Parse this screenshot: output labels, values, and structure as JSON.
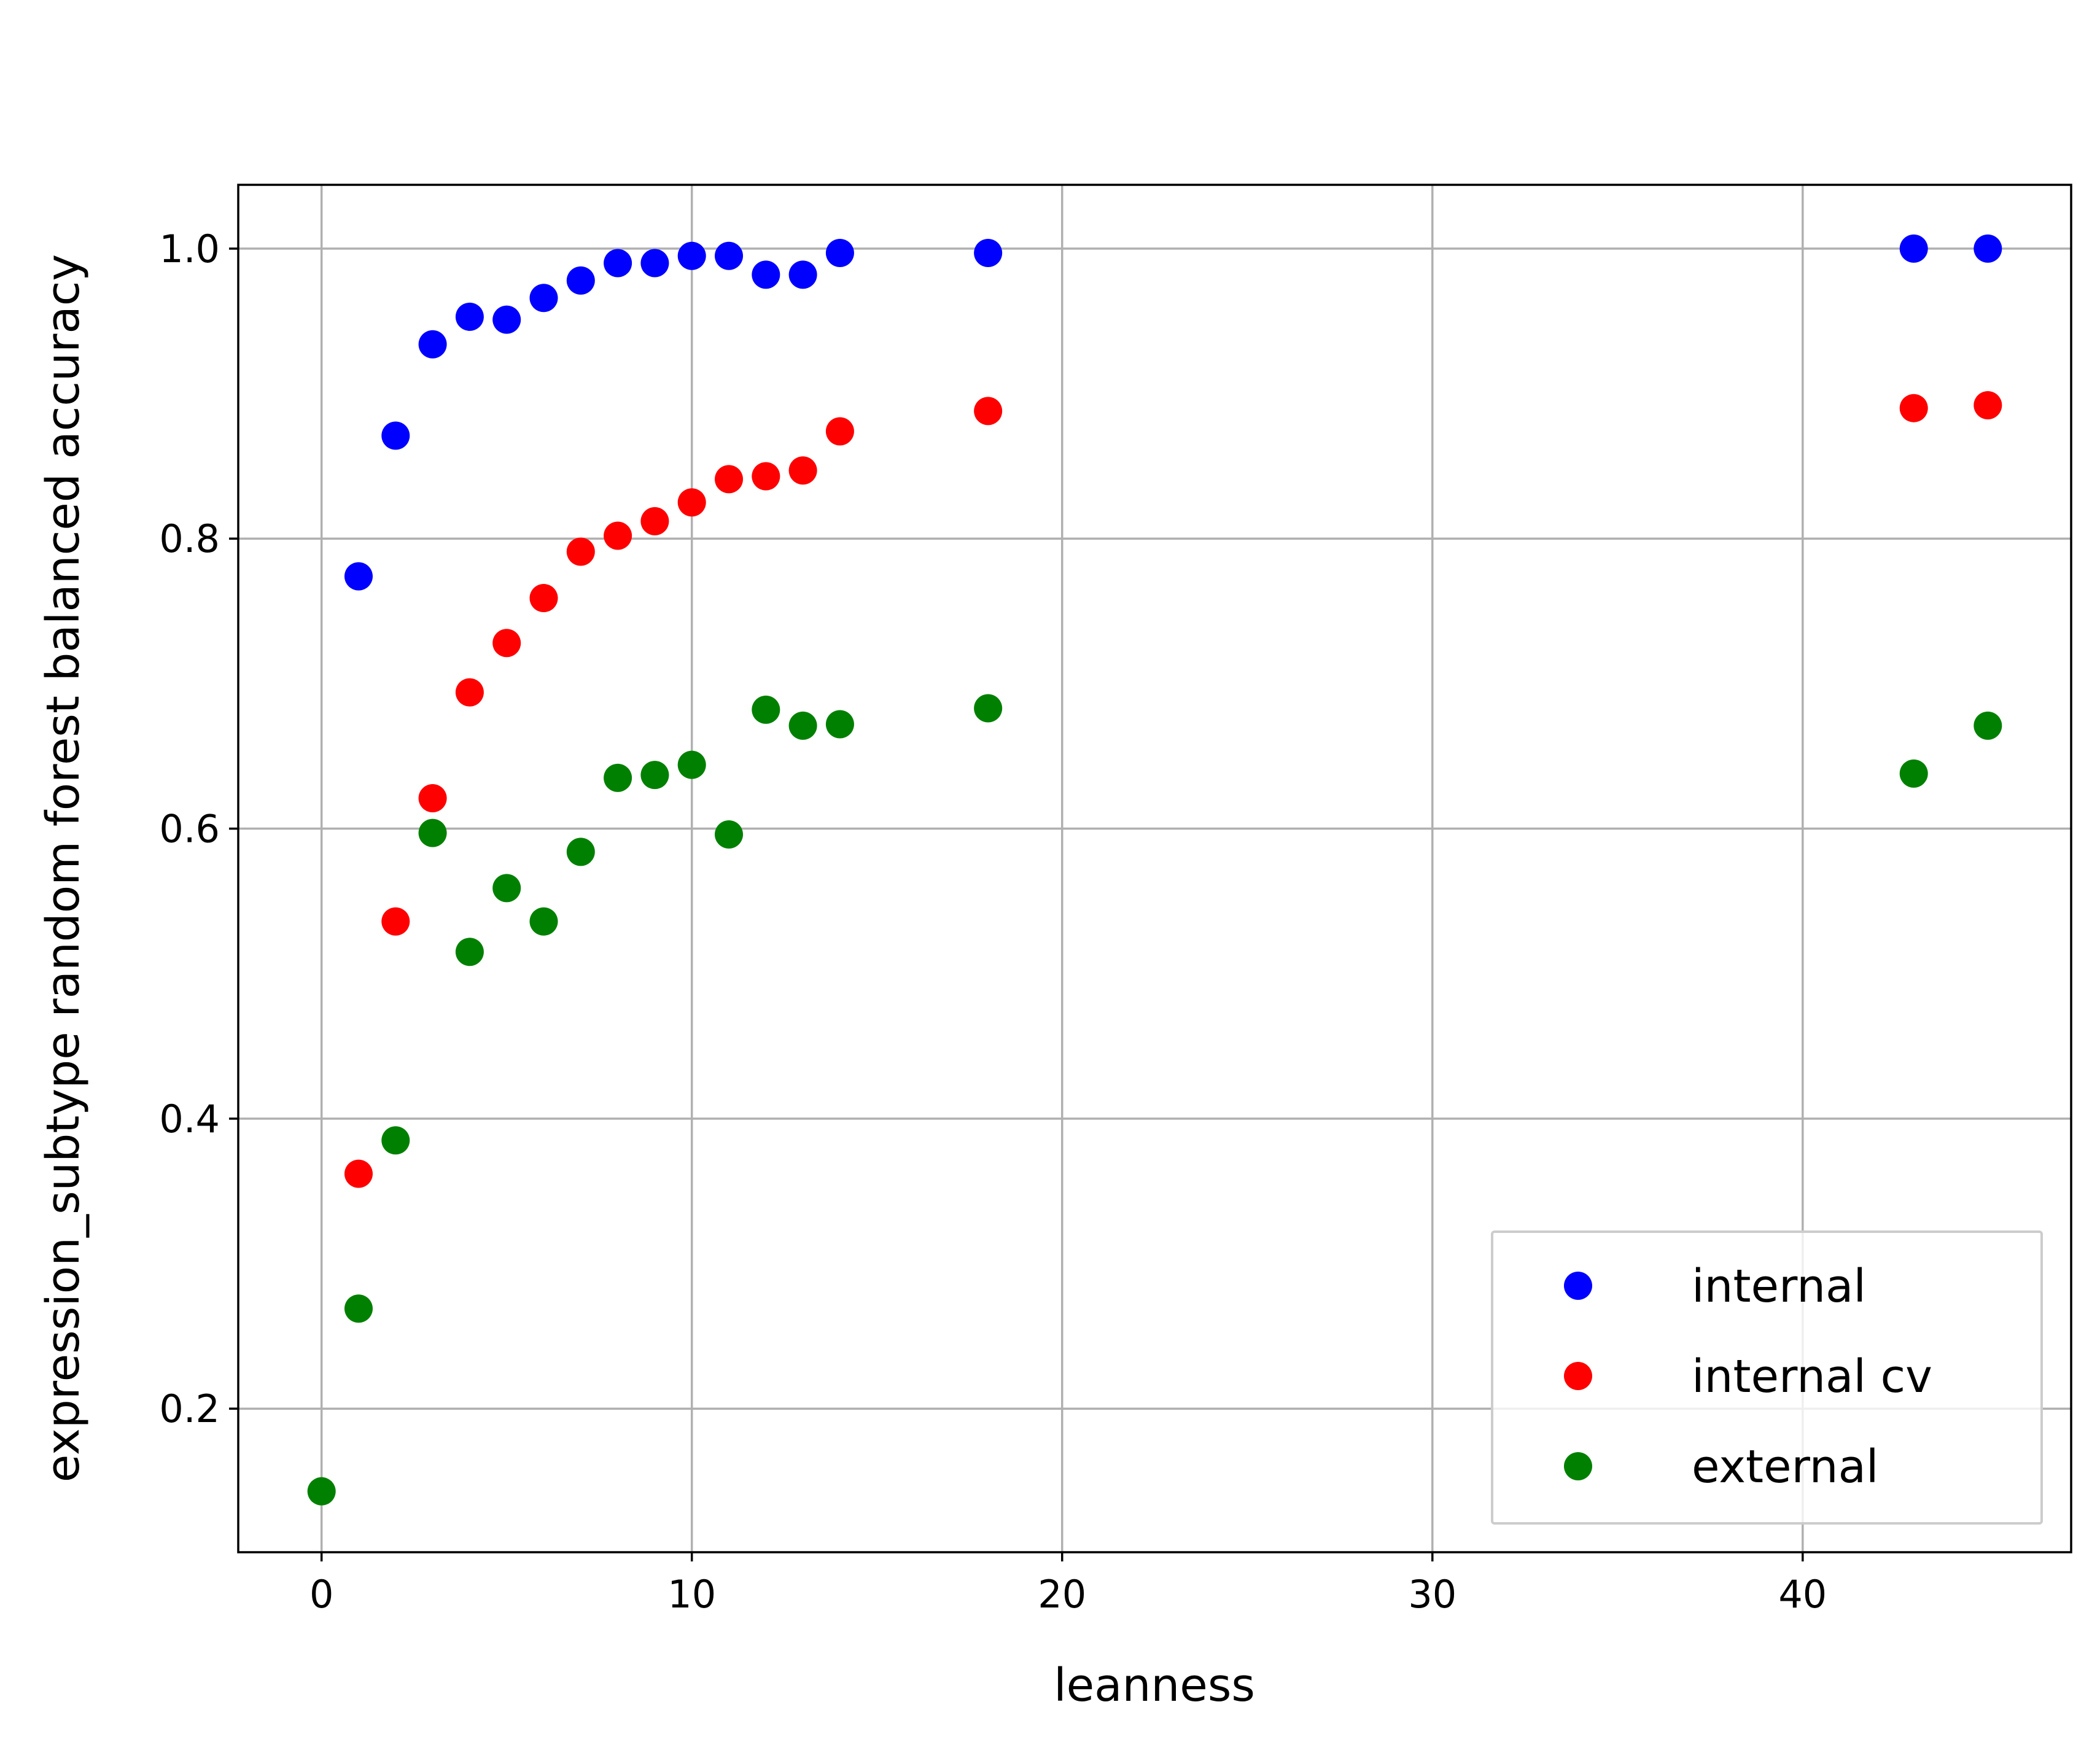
{
  "chart_data": {
    "type": "scatter",
    "xlabel": "leanness",
    "ylabel": "expression_subtype random forest balanced accuracy",
    "xlim": [
      -2.25,
      47.25
    ],
    "ylim": [
      0.101,
      1.044
    ],
    "xticks": [
      0,
      10,
      20,
      30,
      40
    ],
    "yticks": [
      0.2,
      0.4,
      0.6,
      0.8,
      1.0
    ],
    "xtick_labels": [
      "0",
      "10",
      "20",
      "30",
      "40"
    ],
    "ytick_labels": [
      "0.2",
      "0.4",
      "0.6",
      "0.8",
      "1.0"
    ],
    "grid": true,
    "legend_position": "lower right",
    "series": [
      {
        "name": "internal",
        "color": "#0000ff",
        "points": [
          {
            "x": 1,
            "y": 0.774
          },
          {
            "x": 2,
            "y": 0.871
          },
          {
            "x": 3,
            "y": 0.934
          },
          {
            "x": 4,
            "y": 0.953
          },
          {
            "x": 5,
            "y": 0.951
          },
          {
            "x": 6,
            "y": 0.966
          },
          {
            "x": 7,
            "y": 0.978
          },
          {
            "x": 8,
            "y": 0.99
          },
          {
            "x": 9,
            "y": 0.99
          },
          {
            "x": 10,
            "y": 0.995
          },
          {
            "x": 11,
            "y": 0.995
          },
          {
            "x": 12,
            "y": 0.982
          },
          {
            "x": 13,
            "y": 0.982
          },
          {
            "x": 14,
            "y": 0.997
          },
          {
            "x": 18,
            "y": 0.997
          },
          {
            "x": 43,
            "y": 1.0
          },
          {
            "x": 45,
            "y": 1.0
          }
        ]
      },
      {
        "name": "internal cv",
        "color": "#ff0000",
        "points": [
          {
            "x": 1,
            "y": 0.362
          },
          {
            "x": 2,
            "y": 0.536
          },
          {
            "x": 3,
            "y": 0.621
          },
          {
            "x": 4,
            "y": 0.694
          },
          {
            "x": 5,
            "y": 0.728
          },
          {
            "x": 6,
            "y": 0.759
          },
          {
            "x": 7,
            "y": 0.791
          },
          {
            "x": 8,
            "y": 0.802
          },
          {
            "x": 9,
            "y": 0.812
          },
          {
            "x": 10,
            "y": 0.825
          },
          {
            "x": 11,
            "y": 0.841
          },
          {
            "x": 12,
            "y": 0.843
          },
          {
            "x": 13,
            "y": 0.847
          },
          {
            "x": 14,
            "y": 0.874
          },
          {
            "x": 18,
            "y": 0.888
          },
          {
            "x": 43,
            "y": 0.89
          },
          {
            "x": 45,
            "y": 0.892
          }
        ]
      },
      {
        "name": "external",
        "color": "#008000",
        "points": [
          {
            "x": 0,
            "y": 0.143
          },
          {
            "x": 1,
            "y": 0.269
          },
          {
            "x": 2,
            "y": 0.385
          },
          {
            "x": 3,
            "y": 0.597
          },
          {
            "x": 4,
            "y": 0.515
          },
          {
            "x": 5,
            "y": 0.559
          },
          {
            "x": 6,
            "y": 0.536
          },
          {
            "x": 7,
            "y": 0.584
          },
          {
            "x": 8,
            "y": 0.635
          },
          {
            "x": 9,
            "y": 0.637
          },
          {
            "x": 10,
            "y": 0.644
          },
          {
            "x": 11,
            "y": 0.596
          },
          {
            "x": 12,
            "y": 0.682
          },
          {
            "x": 13,
            "y": 0.671
          },
          {
            "x": 14,
            "y": 0.672
          },
          {
            "x": 18,
            "y": 0.683
          },
          {
            "x": 43,
            "y": 0.638
          },
          {
            "x": 45,
            "y": 0.671
          }
        ]
      }
    ]
  }
}
